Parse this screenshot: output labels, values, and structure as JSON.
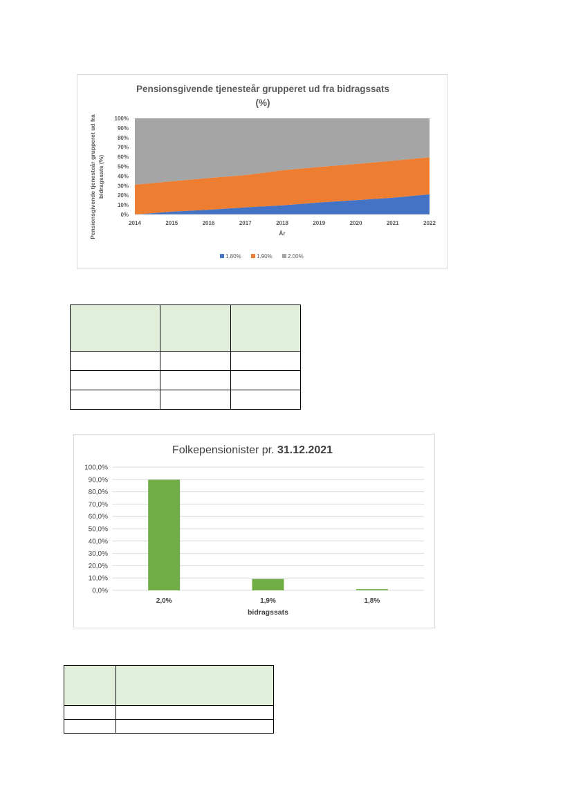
{
  "chart_data": [
    {
      "type": "area",
      "stacked": "percent",
      "title_line1": "Pensionsgivende tjenesteår grupperet ud fra bidragssats",
      "title_line2": "(%)",
      "xlabel": "År",
      "ylabel_line1": "Pensionsgivende tjenesteår grupperet ud fra",
      "ylabel_line2": "bidragssats (%)",
      "x": [
        2014,
        2015,
        2016,
        2017,
        2018,
        2019,
        2020,
        2021,
        2022
      ],
      "x_ticks": [
        "2014",
        "2015",
        "2016",
        "2017",
        "2018",
        "2019",
        "2020",
        "2021",
        "2022"
      ],
      "y_ticks": [
        "0%",
        "10%",
        "20%",
        "30%",
        "40%",
        "50%",
        "60%",
        "70%",
        "80%",
        "90%",
        "100%"
      ],
      "ylim": [
        0,
        100
      ],
      "grid": false,
      "legend_position": "bottom",
      "series": [
        {
          "name": "1.80%",
          "color": "#4472c4",
          "values": [
            0,
            3,
            5,
            7.5,
            9.5,
            12.5,
            15,
            17.5,
            21
          ]
        },
        {
          "name": "1.90%",
          "color": "#ed7d31",
          "values": [
            31,
            31.5,
            33,
            33.5,
            36.5,
            37,
            37.5,
            38.5,
            38.5
          ]
        },
        {
          "name": "2.00%",
          "color": "#a5a5a5",
          "values": [
            69,
            65.5,
            62,
            59,
            54,
            50.5,
            47.5,
            44,
            40.5
          ]
        }
      ]
    },
    {
      "type": "bar",
      "title_normal": "Folkepensionister pr. ",
      "title_bold": "31.12.2021",
      "xlabel": "bidragssats",
      "ylabel": "",
      "categories": [
        "2,0%",
        "1,9%",
        "1,8%"
      ],
      "values": [
        89.8,
        9.2,
        1.0
      ],
      "y_ticks": [
        "0,0%",
        "10,0%",
        "20,0%",
        "30,0%",
        "40,0%",
        "50,0%",
        "60,0%",
        "70,0%",
        "80,0%",
        "90,0%",
        "100,0%"
      ],
      "ylim": [
        0,
        100
      ],
      "grid": true,
      "color": "#70ad47"
    }
  ]
}
